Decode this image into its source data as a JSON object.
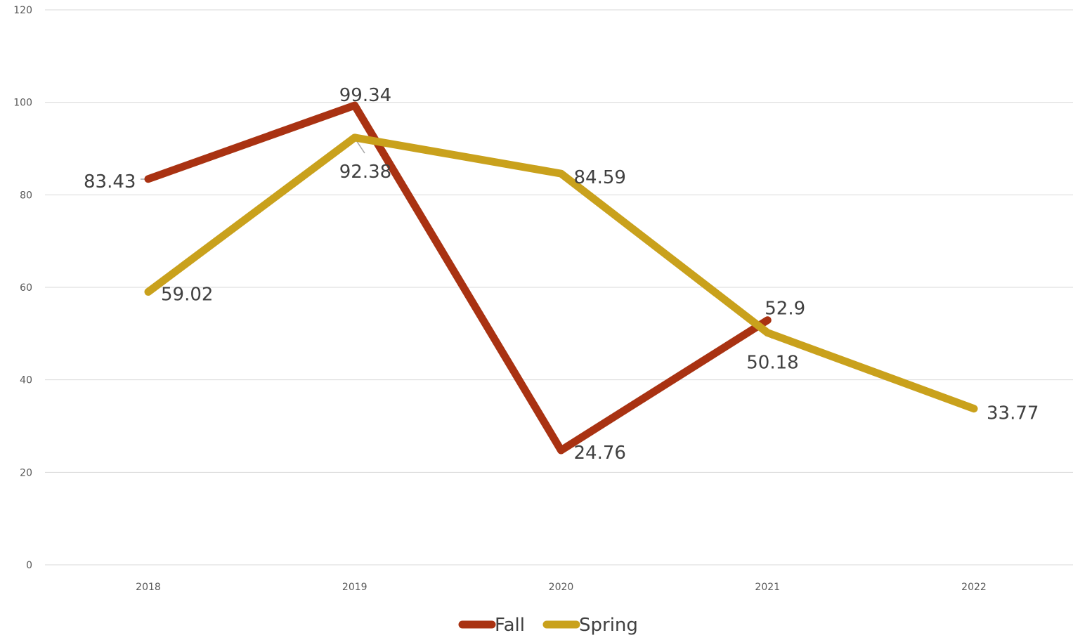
{
  "chart_data": {
    "type": "line",
    "categories": [
      "2018",
      "2019",
      "2020",
      "2021",
      "2022"
    ],
    "series": [
      {
        "name": "Fall",
        "color": "#a93212",
        "values": [
          83.43,
          99.34,
          24.76,
          52.9,
          null
        ],
        "labels": [
          "83.43",
          "99.34",
          "24.76",
          "52.9",
          ""
        ]
      },
      {
        "name": "Spring",
        "color": "#c9a11c",
        "values": [
          59.02,
          92.38,
          84.59,
          50.18,
          33.77
        ],
        "labels": [
          "59.02",
          "92.38",
          "84.59",
          "50.18",
          "33.77"
        ]
      }
    ],
    "ylim": [
      0,
      120
    ],
    "yticks": [
      "0",
      "20",
      "40",
      "60",
      "80",
      "100",
      "120"
    ],
    "ytick_values": [
      0,
      20,
      40,
      60,
      80,
      100,
      120
    ],
    "grid": true,
    "legend": "bottom",
    "xlabel": "",
    "ylabel": "",
    "title": ""
  }
}
